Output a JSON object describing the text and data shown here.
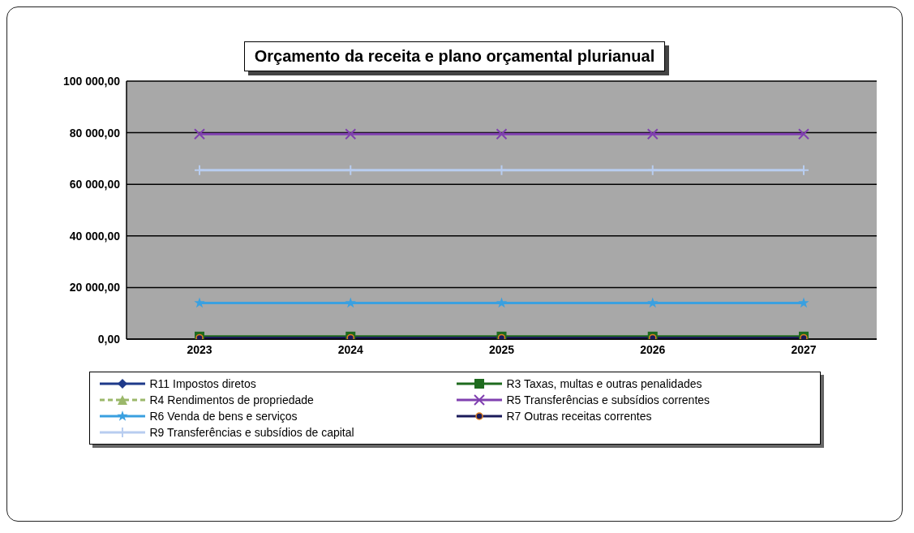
{
  "chart_data": {
    "type": "line",
    "title": "Orçamento da receita e plano orçamental plurianual",
    "categories": [
      "2023",
      "2024",
      "2025",
      "2026",
      "2027"
    ],
    "series": [
      {
        "name": "R11 Impostos diretos",
        "color": "#1f3a8a",
        "marker": "diamond",
        "values": [
          null,
          null,
          null,
          null,
          null
        ]
      },
      {
        "name": "R3 Taxas, multas e outras penalidades",
        "color": "#1e6b1e",
        "marker": "square",
        "values": [
          1000,
          1000,
          1000,
          1000,
          1000
        ]
      },
      {
        "name": "R4 Rendimentos de propriedade",
        "color": "#9bb86a",
        "marker": "triangle",
        "line_style": "dashed",
        "values": [
          null,
          null,
          null,
          null,
          null
        ]
      },
      {
        "name": "R5 Transferências e subsídios correntes",
        "color": "#8040b0",
        "marker": "cross",
        "values": [
          79500,
          79500,
          79500,
          79500,
          79500
        ]
      },
      {
        "name": "R6 Venda de bens e serviços",
        "color": "#3aa0e0",
        "marker": "star",
        "values": [
          14000,
          14000,
          14000,
          14000,
          14000
        ]
      },
      {
        "name": "R7 Outras receitas  correntes",
        "color": "#1a1a5a",
        "marker": "circle",
        "values": [
          500,
          500,
          500,
          500,
          500
        ]
      },
      {
        "name": "R9 Transferências e subsídios de capital",
        "color": "#b8cdf0",
        "marker": "plus",
        "values": [
          65500,
          65500,
          65500,
          65500,
          65500
        ]
      }
    ],
    "ylim": [
      0,
      100000
    ],
    "yticks": [
      {
        "value": 0,
        "label": "0,00"
      },
      {
        "value": 20000,
        "label": "20 000,00"
      },
      {
        "value": 40000,
        "label": "40 000,00"
      },
      {
        "value": 60000,
        "label": "60 000,00"
      },
      {
        "value": 80000,
        "label": "80 000,00"
      },
      {
        "value": 100000,
        "label": "100 000,00"
      }
    ],
    "grid": "y",
    "legend": "bottom"
  }
}
